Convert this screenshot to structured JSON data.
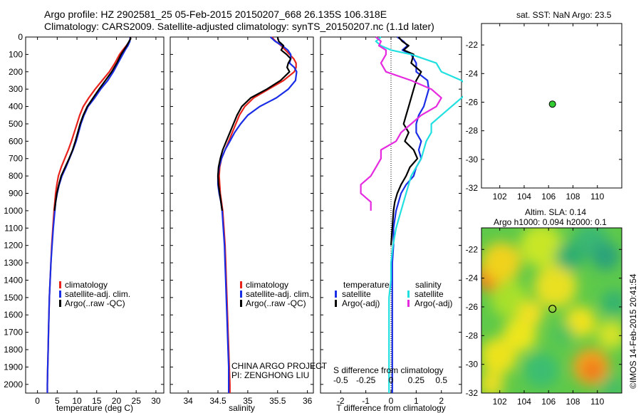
{
  "header": {
    "title_line1": "Argo profile: HZ 2902581_25 05-Feb-2015 20150207_668 26.135S 106.318E",
    "title_line2": "Climatology: CARS2009. Satellite-adjusted climatology: synTS_20150207.nc (1.1d later)"
  },
  "side_titles": {
    "sst": "sat. SST: NaN Argo: 23.5",
    "sla_line1": "Altim. SLA: 0.14",
    "sla_line2": "Argo h1000: 0.094 h2000: 0.1"
  },
  "credit": "©IMOS 14-Feb-2015 20:41:54",
  "project_line1": "CHINA ARGO PROJECT",
  "project_line2": "PI: ZENGHONG LIU",
  "colors": {
    "climatology": "#e8231c",
    "satellite": "#1a2ee6",
    "argo": "#000000",
    "sat_salinity": "#22e0e0",
    "argo_salinity": "#e52ae0",
    "station": "#33cc33"
  },
  "chart_data": [
    {
      "type": "line",
      "name": "temperature",
      "xlabel": "temperature (deg C)",
      "ylabel": "",
      "xlim": [
        -3,
        32
      ],
      "ylim": [
        2050,
        0
      ],
      "xticks": [
        0,
        5,
        10,
        15,
        20,
        25,
        30
      ],
      "yticks": [
        0,
        100,
        200,
        300,
        400,
        500,
        600,
        700,
        800,
        900,
        1000,
        1100,
        1200,
        1300,
        1400,
        1500,
        1600,
        1700,
        1800,
        1900,
        2000
      ],
      "legend": [
        "climatology",
        "satellite-adj. clim.",
        "Argo(..raw -QC)"
      ],
      "series": [
        {
          "name": "climatology",
          "color": "#e8231c",
          "depth": [
            0,
            25,
            50,
            75,
            100,
            150,
            200,
            250,
            300,
            350,
            400,
            450,
            500,
            550,
            600,
            650,
            700,
            750,
            800,
            850,
            900,
            950,
            1000,
            1100,
            1200,
            1300,
            1400,
            1500,
            1600,
            1700,
            1800,
            1900,
            2000,
            2050
          ],
          "values": [
            23.6,
            23.3,
            22.5,
            21.6,
            20.8,
            19.6,
            18.2,
            16.4,
            14.6,
            13.0,
            11.6,
            10.7,
            10.0,
            9.3,
            8.6,
            7.8,
            6.9,
            6.0,
            5.3,
            4.9,
            4.6,
            4.4,
            4.2,
            3.9,
            3.6,
            3.4,
            3.2,
            3.0,
            2.9,
            2.8,
            2.7,
            2.6,
            2.5,
            2.5
          ]
        },
        {
          "name": "satellite-adj. clim.",
          "color": "#1a2ee6",
          "depth": [
            0,
            25,
            50,
            75,
            100,
            150,
            200,
            250,
            300,
            350,
            400,
            450,
            500,
            550,
            600,
            650,
            700,
            750,
            800,
            850,
            900,
            950,
            1000,
            1100,
            1200,
            1300,
            1400,
            1500,
            1600,
            1700,
            1800,
            1900,
            2000,
            2050
          ],
          "values": [
            23.5,
            23.4,
            22.9,
            22.2,
            21.6,
            20.4,
            19.2,
            17.8,
            16.0,
            14.5,
            12.8,
            11.8,
            11.0,
            10.4,
            9.8,
            9.0,
            8.1,
            7.2,
            6.2,
            5.5,
            5.0,
            4.6,
            4.4,
            4.0,
            3.7,
            3.4,
            3.2,
            3.0,
            2.9,
            2.8,
            2.7,
            2.6,
            2.5,
            2.5
          ]
        },
        {
          "name": "Argo(..raw -QC)",
          "color": "#000000",
          "depth": [
            0,
            10,
            25,
            50,
            75,
            100,
            150,
            200,
            250,
            300,
            350,
            400,
            450,
            500,
            550,
            600,
            650,
            700,
            750,
            800,
            850,
            900,
            950,
            1000
          ],
          "values": [
            23.5,
            23.6,
            23.2,
            22.6,
            21.9,
            21.2,
            20.1,
            18.8,
            17.2,
            15.6,
            14.1,
            12.6,
            11.6,
            10.8,
            10.2,
            9.6,
            8.9,
            8.0,
            7.0,
            6.0,
            5.4,
            4.9,
            4.6,
            4.3
          ]
        }
      ]
    },
    {
      "type": "line",
      "name": "salinity",
      "xlabel": "salinity",
      "ylabel": "",
      "xlim": [
        33.7,
        36.1
      ],
      "ylim": [
        2050,
        0
      ],
      "xticks": [
        34,
        34.5,
        35,
        35.5,
        36
      ],
      "xticklabels": [
        "34",
        "34.5",
        "35",
        "35.5",
        "36"
      ],
      "legend": [
        "climatology",
        "satellite-adj. clim.",
        "Argo(..raw -QC)"
      ],
      "series": [
        {
          "name": "climatology",
          "color": "#e8231c",
          "depth": [
            0,
            25,
            50,
            75,
            100,
            125,
            150,
            175,
            200,
            250,
            300,
            350,
            400,
            450,
            500,
            550,
            600,
            650,
            700,
            750,
            800,
            850,
            900,
            950,
            1000,
            1100,
            1200,
            1300,
            1400,
            1500,
            1600,
            1700,
            1800,
            1900,
            2000,
            2050
          ],
          "values": [
            35.4,
            35.47,
            35.56,
            35.63,
            35.7,
            35.77,
            35.81,
            35.81,
            35.78,
            35.6,
            35.35,
            35.1,
            34.95,
            34.86,
            34.8,
            34.74,
            34.68,
            34.62,
            34.56,
            34.53,
            34.52,
            34.53,
            34.54,
            34.56,
            34.58,
            34.6,
            34.62,
            34.63,
            34.64,
            34.65,
            34.66,
            34.67,
            34.68,
            34.69,
            34.7,
            34.7
          ]
        },
        {
          "name": "satellite-adj. clim.",
          "color": "#1a2ee6",
          "depth": [
            0,
            25,
            50,
            75,
            100,
            125,
            150,
            175,
            200,
            250,
            300,
            350,
            400,
            450,
            500,
            550,
            600,
            650,
            700,
            750,
            800,
            850,
            900,
            950,
            1000,
            1100,
            1200,
            1300,
            1400,
            1500,
            1600,
            1700,
            1800,
            1900,
            2000,
            2050
          ],
          "values": [
            35.38,
            35.46,
            35.58,
            35.67,
            35.72,
            35.72,
            35.7,
            35.78,
            35.82,
            35.8,
            35.68,
            35.48,
            35.2,
            35.0,
            34.88,
            34.78,
            34.7,
            34.62,
            34.56,
            34.52,
            34.5,
            34.5,
            34.52,
            34.55,
            34.57,
            34.59,
            34.61,
            34.62,
            34.63,
            34.64,
            34.65,
            34.66,
            34.67,
            34.68,
            34.68,
            34.68
          ]
        },
        {
          "name": "Argo(..raw -QC)",
          "color": "#000000",
          "depth": [
            0,
            25,
            50,
            75,
            100,
            125,
            150,
            175,
            200,
            250,
            300,
            350,
            400,
            450,
            500,
            550,
            600,
            650,
            700,
            750,
            800,
            850,
            900,
            950,
            1000
          ],
          "values": [
            35.5,
            35.52,
            35.6,
            35.56,
            35.65,
            35.72,
            35.68,
            35.66,
            35.7,
            35.55,
            35.32,
            35.05,
            34.9,
            34.82,
            34.76,
            34.7,
            34.64,
            34.58,
            34.54,
            34.51,
            34.5,
            34.51,
            34.53,
            34.55,
            34.57
          ]
        }
      ]
    },
    {
      "type": "line",
      "name": "differences from climatology",
      "xlabel": "T difference from climatology",
      "xlabel_top": "S difference from climatology",
      "xlim": [
        -2.8,
        2.8
      ],
      "ylim": [
        2050,
        0
      ],
      "xticks": [
        -2,
        -1,
        0,
        1,
        2
      ],
      "xticks_top": [
        -0.5,
        -0.25,
        0,
        0.25,
        0.5
      ],
      "xticklabels_top": [
        "-0.5",
        "-0.25",
        "0",
        "0.25",
        "0.5"
      ],
      "legend_headers": [
        "temperature",
        "salinity"
      ],
      "legend": [
        "satellite",
        "Argo(-adj)",
        "satellite",
        "Argo(-adj)"
      ],
      "series": [
        {
          "name": "temperature satellite",
          "color": "#1a2ee6",
          "depth": [
            0,
            25,
            50,
            75,
            100,
            150,
            200,
            250,
            300,
            350,
            400,
            450,
            500,
            550,
            600,
            650,
            700,
            750,
            800,
            850,
            900,
            950,
            1000,
            1100,
            1200,
            1300,
            1400,
            1500,
            1600,
            1700,
            1800,
            1900,
            2000,
            2050
          ],
          "values": [
            0.25,
            0.5,
            0.65,
            0.45,
            0.8,
            1.0,
            1.0,
            1.45,
            1.5,
            1.4,
            1.3,
            1.1,
            1.0,
            1.0,
            1.2,
            1.1,
            1.2,
            1.0,
            0.9,
            0.6,
            0.4,
            0.3,
            0.2,
            0.1,
            0.1,
            0.05,
            0.05,
            0.05,
            0.05,
            0.05,
            0.05,
            0.05,
            0.05,
            0.05
          ]
        },
        {
          "name": "temperature Argo(-adj)",
          "color": "#000000",
          "depth": [
            0,
            25,
            50,
            75,
            100,
            150,
            200,
            250,
            300,
            350,
            400,
            450,
            500,
            550,
            600,
            650,
            700,
            750,
            800,
            850,
            900,
            950,
            1000,
            1100,
            1200
          ],
          "values": [
            0.3,
            0.45,
            0.7,
            0.5,
            0.9,
            0.8,
            1.2,
            1.0,
            0.9,
            0.8,
            0.7,
            0.6,
            0.5,
            0.7,
            0.55,
            0.9,
            1.05,
            0.75,
            0.6,
            0.4,
            0.25,
            0.15,
            0.1,
            0.05,
            0.0
          ]
        },
        {
          "name": "salinity satellite",
          "color": "#22e0e0",
          "depth": [
            0,
            25,
            50,
            75,
            100,
            150,
            200,
            250,
            300,
            350,
            400,
            450,
            500,
            550,
            600,
            700,
            800,
            900,
            1000,
            1100,
            1200,
            1300,
            1400,
            1500,
            1600,
            1700,
            1800,
            1900,
            2000,
            2050
          ],
          "values": [
            -0.1,
            -0.15,
            -0.1,
            0.0,
            0.2,
            0.45,
            0.5,
            0.7,
            0.8,
            0.7,
            0.6,
            0.5,
            0.4,
            0.4,
            0.35,
            0.3,
            0.2,
            0.15,
            0.1,
            0.05,
            0.02,
            0.0,
            0.0,
            -0.02,
            -0.02,
            -0.02,
            -0.02,
            -0.02,
            -0.02,
            -0.02
          ]
        },
        {
          "name": "salinity Argo(-adj)",
          "color": "#e52ae0",
          "depth": [
            0,
            25,
            50,
            75,
            100,
            150,
            200,
            250,
            300,
            350,
            400,
            450,
            500,
            550,
            600,
            650,
            700,
            750,
            800,
            850,
            900,
            950,
            1000
          ],
          "values": [
            -0.15,
            -0.1,
            -0.12,
            -0.05,
            -0.05,
            -0.1,
            -0.05,
            0.2,
            0.4,
            0.5,
            0.45,
            0.3,
            0.2,
            0.1,
            0.05,
            -0.1,
            -0.1,
            -0.15,
            -0.2,
            -0.3,
            -0.3,
            -0.2,
            -0.2
          ]
        }
      ]
    },
    {
      "type": "scatter",
      "name": "SST map",
      "title": "sat. SST: NaN Argo: 23.5",
      "xlim": [
        100.5,
        112
      ],
      "ylim": [
        -32,
        -20.5
      ],
      "xticks": [
        102,
        104,
        106,
        108,
        110
      ],
      "yticks": [
        -22,
        -24,
        -26,
        -28,
        -30,
        -32
      ],
      "points": [
        {
          "x": 106.318,
          "y": -26.135
        }
      ]
    },
    {
      "type": "heatmap",
      "name": "SLA map",
      "title": "Altim. SLA: 0.14",
      "xlim": [
        100.5,
        112
      ],
      "ylim": [
        -32,
        -20.5
      ],
      "xticks": [
        102,
        104,
        106,
        108,
        110
      ],
      "yticks": [
        -22,
        -24,
        -26,
        -28,
        -30,
        -32
      ],
      "points": [
        {
          "x": 106.318,
          "y": -26.135
        }
      ]
    }
  ]
}
